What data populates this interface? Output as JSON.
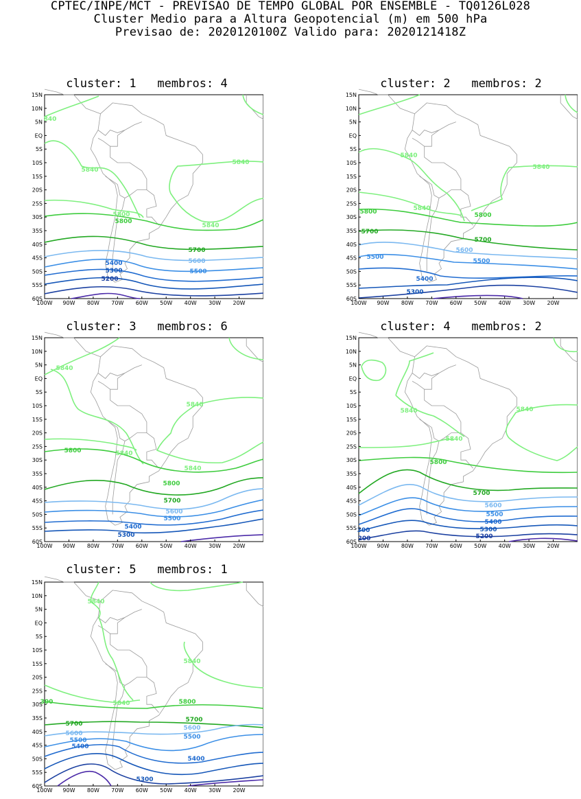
{
  "header": {
    "line1": "CPTEC/INPE/MCT - PREVISAO DE TEMPO GLOBAL POR ENSEMBLE - TQ0126L028",
    "line2": "Cluster Medio para a Altura Geopotencial (m) em 500 hPa",
    "line3": "Previsao de: 2020120100Z    Valido para: 2020121418Z"
  },
  "lat_ticks": [
    "15N",
    "10N",
    "5N",
    "EQ",
    "5S",
    "10S",
    "15S",
    "20S",
    "25S",
    "30S",
    "35S",
    "40S",
    "45S",
    "50S",
    "55S",
    "60S"
  ],
  "lon_ticks": [
    "100W",
    "90W",
    "80W",
    "70W",
    "60W",
    "50W",
    "40W",
    "30W",
    "20W"
  ],
  "colors": {
    "5840": "#7ef07e",
    "5800": "#3dcc3d",
    "5700": "#22a822",
    "5600": "#7ab8f0",
    "5500": "#3a8ee6",
    "5400": "#1f6bd0",
    "5300": "#1456b8",
    "5200": "#1a3fa0",
    "5100": "#4b2aa8",
    "coast": "#9a9a9a"
  },
  "panels": [
    {
      "cluster_label": "cluster:",
      "cluster": "1",
      "members_label": "membros:",
      "members": "4",
      "labels": [
        "840",
        "5840",
        "5840",
        "5840",
        "5800",
        "5800",
        "5700",
        "5600",
        "5500",
        "5400",
        "5300",
        "5200"
      ]
    },
    {
      "cluster_label": "cluster:",
      "cluster": "2",
      "members_label": "membros:",
      "members": "2",
      "labels": [
        "5840",
        "5840",
        "5840",
        "5800",
        "5800",
        "5700",
        "5700",
        "5600",
        "5500",
        "5500",
        "5400",
        "5300"
      ]
    },
    {
      "cluster_label": "cluster:",
      "cluster": "3",
      "members_label": "membros:",
      "members": "6",
      "labels": [
        "5840",
        "5840",
        "5840",
        "5840",
        "5800",
        "5800",
        "5700",
        "5600",
        "5500",
        "5400",
        "5300"
      ]
    },
    {
      "cluster_label": "cluster:",
      "cluster": "4",
      "members_label": "membros:",
      "members": "2",
      "labels": [
        "5840",
        "5840",
        "5840",
        "5800",
        "5700",
        "5600",
        "5500",
        "5400",
        "5300",
        "300",
        "200",
        "5200"
      ]
    },
    {
      "cluster_label": "cluster:",
      "cluster": "5",
      "members_label": "membros:",
      "members": "1",
      "labels": [
        "5840",
        "5840",
        "5840",
        "300",
        "5800",
        "5700",
        "5700",
        "5600",
        "5600",
        "5500",
        "5500",
        "5400",
        "5400",
        "5300"
      ]
    }
  ]
}
